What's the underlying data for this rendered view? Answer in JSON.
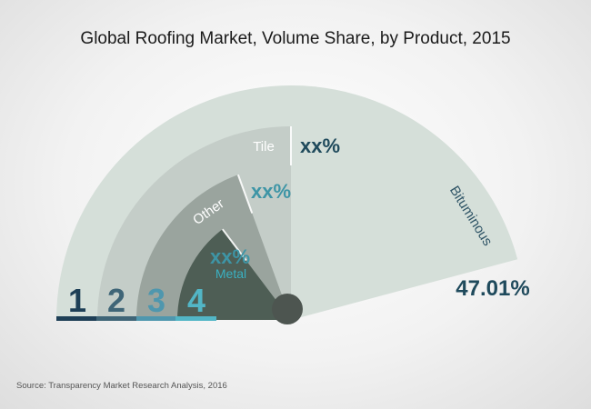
{
  "title": "Global Roofing Market, Volume Share, by Product, 2015",
  "source": "Source: Transparency Market Research Analysis, 2016",
  "colors": {
    "ring1": "#d5dfd9",
    "ring2": "#c4cdc8",
    "ring3": "#9aa49e",
    "ring4": "#4e5e55",
    "hub": "#4d5550",
    "bar1": "#1e3f56",
    "bar2": "#3f6577",
    "bar3": "#4f97ae",
    "bar4": "#52b6c6",
    "value_dark": "#1f4a5c",
    "value_teal": "#3e95a6",
    "metal_label": "#3ab0c1"
  },
  "chart_data": {
    "type": "gauge",
    "title": "Global Roofing Market, Volume Share, by Product, 2015",
    "segments": [
      {
        "rank": "1",
        "name": "Bituminous",
        "value_label": "47.01%",
        "share": 47.01
      },
      {
        "rank": "2",
        "name": "Tile",
        "value_label": "xx%",
        "share": null
      },
      {
        "rank": "3",
        "name": "Other",
        "value_label": "xx%",
        "share": null
      },
      {
        "rank": "4",
        "name": "Metal",
        "value_label": "xx%",
        "share": null
      }
    ]
  }
}
